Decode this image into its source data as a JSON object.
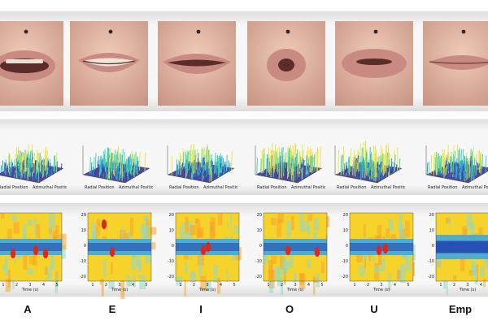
{
  "columns": [
    {
      "label": "A"
    },
    {
      "label": "E"
    },
    {
      "label": "I"
    },
    {
      "label": "O"
    },
    {
      "label": "U"
    },
    {
      "label": "Emp"
    }
  ],
  "colors": {
    "skin": "#e3b9a6",
    "lip": "#c98a82",
    "mouth_dark": "#5a2d2a",
    "mole": "#3a2220",
    "spectro_bg": "#3fa8e0",
    "spectro_hot": "#e0271c",
    "spectro_warm": "#f5d32a",
    "spectro_cool": "#1e3fae"
  },
  "surface_axis_text": [
    "Radial Position",
    "Azimuthal Position"
  ],
  "spectro_axes": {
    "y_ticks": [
      "20",
      "10",
      "0",
      "-10",
      "-20"
    ],
    "x_ticks": [
      "1",
      "2",
      "3",
      "4",
      "5"
    ],
    "x_label": "Time (s)"
  }
}
